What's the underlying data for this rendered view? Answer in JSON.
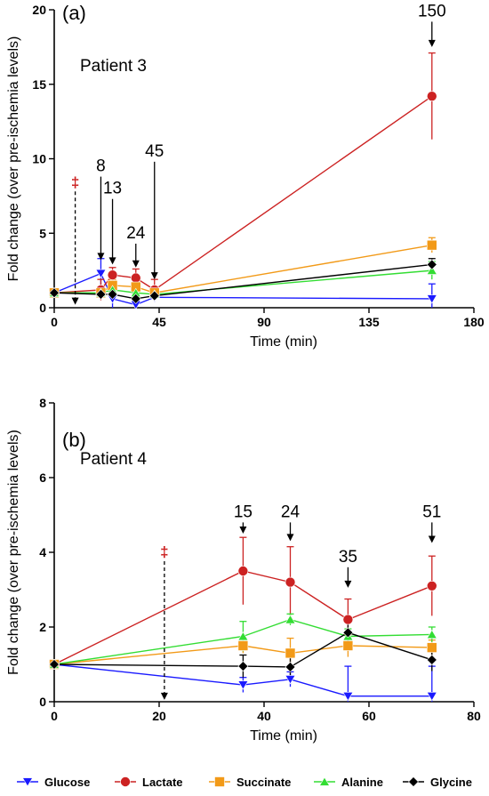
{
  "chart_data": [
    {
      "type": "line",
      "panel_label": "(a)",
      "subtitle": "Patient 3",
      "xlabel": "Time (min)",
      "ylabel": "Fold change (over pre-ischemia levels)",
      "xlim": [
        0,
        180
      ],
      "ylim": [
        0,
        20
      ],
      "xticks": [
        0,
        45,
        90,
        135,
        180
      ],
      "yticks": [
        0,
        5,
        10,
        15,
        20
      ],
      "series": [
        {
          "name": "Glucose",
          "color": "#1a1aff",
          "marker": "triangle-down",
          "x": [
            0,
            20,
            25,
            35,
            43,
            162
          ],
          "y": [
            1.0,
            2.3,
            0.6,
            0.2,
            0.7,
            0.6
          ],
          "err": [
            0.1,
            1.0,
            0.6,
            0.3,
            0.3,
            1.0
          ]
        },
        {
          "name": "Lactate",
          "color": "#cc2222",
          "marker": "circle",
          "x": [
            0,
            20,
            25,
            35,
            43,
            162
          ],
          "y": [
            1.0,
            1.2,
            2.2,
            2.0,
            1.2,
            14.2
          ],
          "err": [
            0.1,
            0.7,
            0.5,
            0.6,
            0.7,
            2.9
          ]
        },
        {
          "name": "Succinate",
          "color": "#f29a18",
          "marker": "square",
          "x": [
            0,
            20,
            25,
            35,
            43,
            162
          ],
          "y": [
            1.0,
            1.0,
            1.5,
            1.4,
            1.0,
            4.2
          ],
          "err": [
            0.1,
            0.3,
            0.4,
            0.4,
            0.3,
            0.5
          ]
        },
        {
          "name": "Alanine",
          "color": "#33dd33",
          "marker": "triangle-up",
          "x": [
            0,
            20,
            25,
            35,
            43,
            162
          ],
          "y": [
            1.0,
            1.0,
            1.2,
            1.0,
            0.9,
            2.5
          ],
          "err": [
            0.1,
            0.3,
            0.3,
            0.3,
            0.3,
            0.6
          ]
        },
        {
          "name": "Glycine",
          "color": "#000000",
          "marker": "diamond",
          "x": [
            0,
            20,
            25,
            35,
            43,
            162
          ],
          "y": [
            1.0,
            0.9,
            0.9,
            0.6,
            0.8,
            2.9
          ],
          "err": [
            0.1,
            0.3,
            0.3,
            0.3,
            0.3,
            0.4
          ]
        }
      ],
      "annotations": [
        {
          "label": "8",
          "x": 20,
          "y_top": 8.8,
          "y_tip": 3.2
        },
        {
          "label": "13",
          "x": 25,
          "y_top": 7.3,
          "y_tip": 2.9
        },
        {
          "label": "24",
          "x": 35,
          "y_top": 4.3,
          "y_tip": 2.7
        },
        {
          "label": "45",
          "x": 43,
          "y_top": 9.8,
          "y_tip": 1.9
        },
        {
          "label": "150",
          "x": 162,
          "y_top": 19.2,
          "y_tip": 17.5
        }
      ],
      "ischemia_marker": {
        "symbol": "‡",
        "x": 9,
        "y_label": 8.4,
        "y_bottom": 0.2
      }
    },
    {
      "type": "line",
      "panel_label": "(b)",
      "subtitle": "Patient 4",
      "xlabel": "Time (min)",
      "ylabel": "Fold change (over pre-ischemia levels)",
      "xlim": [
        0,
        80
      ],
      "ylim": [
        0,
        8
      ],
      "xticks": [
        0,
        20,
        40,
        60,
        80
      ],
      "yticks": [
        0,
        2,
        4,
        6,
        8
      ],
      "series": [
        {
          "name": "Glucose",
          "color": "#1a1aff",
          "marker": "triangle-down",
          "x": [
            0,
            36,
            45,
            56,
            72
          ],
          "y": [
            1.0,
            0.45,
            0.6,
            0.15,
            0.15
          ],
          "err": [
            0.05,
            0.2,
            0.2,
            0.8,
            0.8
          ]
        },
        {
          "name": "Lactate",
          "color": "#cc2222",
          "marker": "circle",
          "x": [
            0,
            36,
            45,
            56,
            72
          ],
          "y": [
            1.0,
            3.5,
            3.2,
            2.2,
            3.1
          ],
          "err": [
            0.05,
            0.9,
            0.95,
            0.55,
            0.8
          ]
        },
        {
          "name": "Succinate",
          "color": "#f29a18",
          "marker": "square",
          "x": [
            0,
            36,
            45,
            56,
            72
          ],
          "y": [
            1.0,
            1.5,
            1.3,
            1.5,
            1.45
          ],
          "err": [
            0.05,
            0.2,
            0.4,
            0.3,
            0.2
          ]
        },
        {
          "name": "Alanine",
          "color": "#33dd33",
          "marker": "triangle-up",
          "x": [
            0,
            36,
            45,
            56,
            72
          ],
          "y": [
            1.0,
            1.75,
            2.2,
            1.75,
            1.8
          ],
          "err": [
            0.05,
            0.4,
            0.15,
            0.2,
            0.2
          ]
        },
        {
          "name": "Glycine",
          "color": "#000000",
          "marker": "diamond",
          "x": [
            0,
            36,
            45,
            56,
            72
          ],
          "y": [
            1.0,
            0.95,
            0.93,
            1.85,
            1.12
          ],
          "err": [
            0.05,
            0.3,
            0.3,
            0.3,
            0.3
          ]
        }
      ],
      "annotations": [
        {
          "label": "15",
          "x": 36,
          "y_top": 4.8,
          "y_tip": 4.5
        },
        {
          "label": "24",
          "x": 45,
          "y_top": 4.8,
          "y_tip": 4.3
        },
        {
          "label": "35",
          "x": 56,
          "y_top": 3.6,
          "y_tip": 3.05
        },
        {
          "label": "51",
          "x": 72,
          "y_top": 4.8,
          "y_tip": 4.25
        }
      ],
      "ischemia_marker": {
        "symbol": "‡",
        "x": 21,
        "y_label": 4.0,
        "y_bottom": 0.05
      }
    }
  ],
  "legend": [
    {
      "name": "Glucose",
      "color": "#1a1aff",
      "marker": "triangle-down"
    },
    {
      "name": "Lactate",
      "color": "#cc2222",
      "marker": "circle"
    },
    {
      "name": "Succinate",
      "color": "#f29a18",
      "marker": "square"
    },
    {
      "name": "Alanine",
      "color": "#33dd33",
      "marker": "triangle-up"
    },
    {
      "name": "Glycine",
      "color": "#000000",
      "marker": "diamond"
    }
  ]
}
